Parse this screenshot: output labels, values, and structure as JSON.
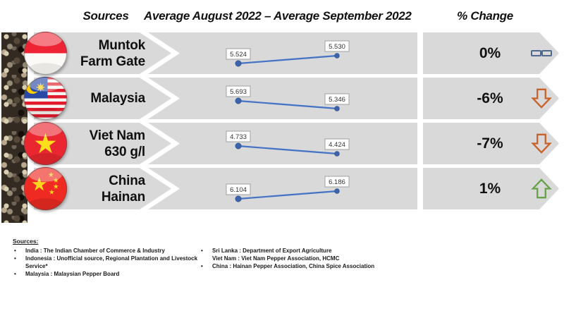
{
  "header": {
    "sources_label": "Sources",
    "period_label": "Average August 2022 – Average September 2022",
    "change_label": "% Change"
  },
  "chart_data": {
    "type": "line",
    "x": [
      "Average August 2022",
      "Average September 2022"
    ],
    "series": [
      {
        "name": "Muntok Farm Gate",
        "values": [
          5.524,
          5.53
        ]
      },
      {
        "name": "Malaysia",
        "values": [
          5.693,
          5.346
        ]
      },
      {
        "name": "Viet Nam 630 g/l",
        "values": [
          4.733,
          4.424
        ]
      },
      {
        "name": "China Hainan",
        "values": [
          6.104,
          6.186
        ]
      }
    ],
    "value_labels": [
      [
        "5.524",
        "5.530"
      ],
      [
        "5.693",
        "5.346"
      ],
      [
        "4.733",
        "4.424"
      ],
      [
        "6.104",
        "6.186"
      ]
    ],
    "legend_position": "none",
    "grid": false
  },
  "rows": [
    {
      "key": "muntok",
      "name_lines": [
        "Muntok",
        "Farm Gate"
      ],
      "flag": "indonesia-flag",
      "change": "0%",
      "trend": "equal"
    },
    {
      "key": "malaysia",
      "name_lines": [
        "Malaysia"
      ],
      "flag": "malaysia-flag",
      "change": "-6%",
      "trend": "down"
    },
    {
      "key": "vietnam",
      "name_lines": [
        "Viet Nam",
        "630 g/l"
      ],
      "flag": "vietnam-flag",
      "change": "-7%",
      "trend": "down"
    },
    {
      "key": "china",
      "name_lines": [
        "China",
        "Hainan"
      ],
      "flag": "china-flag",
      "change": "1%",
      "trend": "up"
    }
  ],
  "footnotes": {
    "heading": "Sources:",
    "left": [
      "India : The Indian Chamber of Commerce & Industry",
      "Indonesia : Unofficial source, Regional Plantation and Livestock Service*",
      "Malaysia : Malaysian Pepper Board"
    ],
    "right": [
      {
        "bullet": true,
        "text": "Sri Lanka : Department of Export Agriculture"
      },
      {
        "bullet": false,
        "text": "Viet Nam : Viet Nam Pepper Association, HCMC"
      },
      {
        "bullet": true,
        "text": "China : Hainan Pepper Association, China Spice Association"
      }
    ]
  },
  "colors": {
    "band": "#d9d9d9",
    "line": "#4472c4",
    "down_arrow": "#c8622b",
    "up_arrow": "#67a14a",
    "equal_icon": "#51688f"
  }
}
